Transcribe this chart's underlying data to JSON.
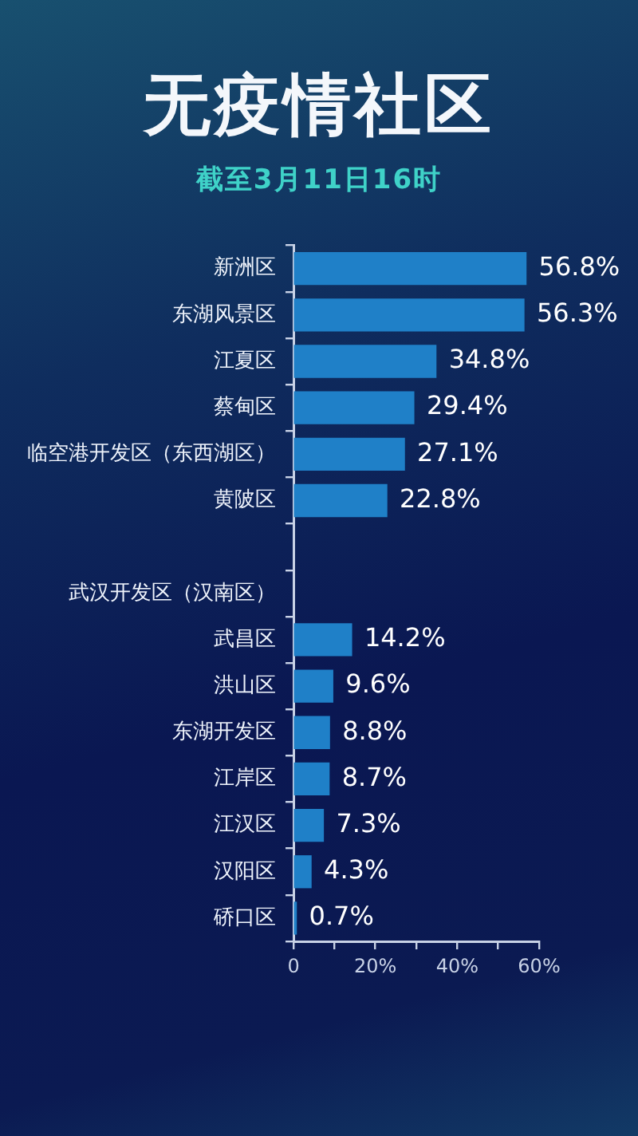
{
  "chart_data": {
    "type": "bar",
    "orientation": "horizontal",
    "title": "无疫情社区",
    "subtitle": "截至3月11日16时",
    "categories": [
      "新洲区",
      "东湖风景区",
      "江夏区",
      "蔡甸区",
      "临空港开发区（东西湖区）",
      "黄陂区",
      null,
      "武汉开发区（汉南区）",
      "武昌区",
      "洪山区",
      "东湖开发区",
      "江岸区",
      "江汉区",
      "汉阳区",
      "硚口区"
    ],
    "values": [
      56.8,
      56.3,
      34.8,
      29.4,
      27.1,
      22.8,
      null,
      null,
      14.2,
      9.6,
      8.8,
      8.7,
      7.3,
      4.3,
      0.7
    ],
    "value_labels": [
      "56.8%",
      "56.3%",
      "34.8%",
      "29.4%",
      "27.1%",
      "22.8%",
      null,
      null,
      "14.2%",
      "9.6%",
      "8.8%",
      "8.7%",
      "7.3%",
      "4.3%",
      "0.7%"
    ],
    "color": "#1f80c8",
    "xlim": [
      0,
      60
    ],
    "xticks": [
      0,
      {
        "value": 10,
        "label": null
      },
      {
        "value": 20,
        "label": "20%"
      },
      {
        "value": 30,
        "label": null
      },
      {
        "value": 40,
        "label": "40%"
      },
      {
        "value": 50,
        "label": null
      },
      {
        "value": 60,
        "label": "60%"
      }
    ],
    "grid": false,
    "legend": false
  }
}
